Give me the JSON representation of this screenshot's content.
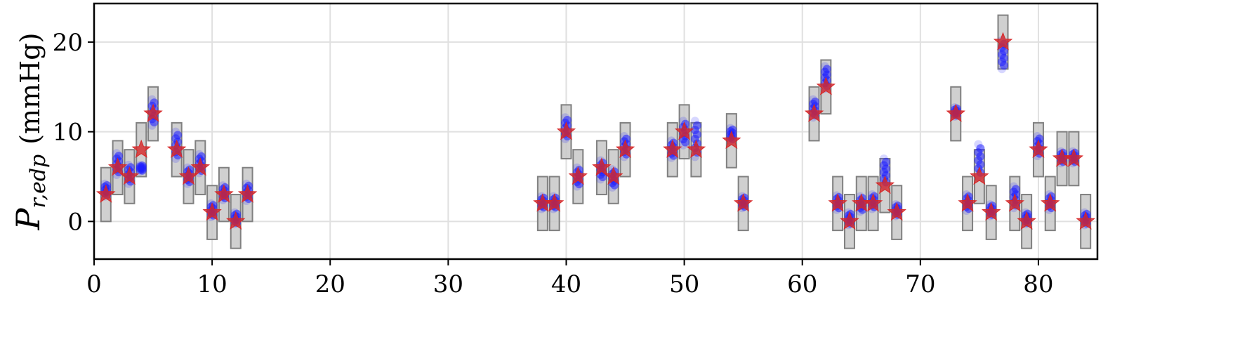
{
  "chart_data": {
    "type": "scatter",
    "title": "",
    "xlabel": "",
    "ylabel": "P_{r,edp} (mmHg)",
    "ylabel_parts": {
      "symbol": "P",
      "subscript": "r,edp",
      "unit": "(mmHg)"
    },
    "xlim": [
      0,
      85
    ],
    "ylim": [
      -4.2,
      24.3
    ],
    "xticks": [
      0,
      10,
      20,
      30,
      40,
      50,
      60,
      70,
      80
    ],
    "yticks": [
      0,
      10,
      20
    ],
    "grid": true,
    "colors": {
      "box": "#808080",
      "box_fill": "#c8c8c8",
      "dots": "#1f1fff",
      "star": "#d62728",
      "grid": "#e0e0e0"
    },
    "series": [
      {
        "marker": "star",
        "x": [
          1,
          2,
          3,
          4,
          5,
          7,
          8,
          9,
          10,
          11,
          12,
          13,
          38,
          39,
          40,
          41,
          43,
          44,
          45,
          49,
          50,
          51,
          54,
          55,
          61,
          62,
          63,
          64,
          65,
          66,
          67,
          68,
          73,
          74,
          75,
          76,
          77,
          78,
          79,
          80,
          81,
          82,
          83,
          84
        ],
        "values": [
          3,
          6,
          5,
          8,
          12,
          8,
          5,
          6,
          1,
          3,
          0,
          3,
          2,
          2,
          10,
          5,
          6,
          5,
          8,
          8,
          10,
          8,
          9,
          2,
          12,
          15,
          2,
          0,
          2,
          2,
          4,
          1,
          12,
          2,
          5,
          1,
          20,
          2,
          0,
          8,
          2,
          7,
          7,
          0
        ]
      },
      {
        "marker": "box",
        "x": [
          1,
          2,
          3,
          4,
          5,
          7,
          8,
          9,
          10,
          11,
          12,
          13,
          38,
          39,
          40,
          41,
          43,
          44,
          45,
          49,
          50,
          51,
          54,
          55,
          61,
          62,
          63,
          64,
          65,
          66,
          67,
          68,
          73,
          74,
          75,
          76,
          77,
          78,
          79,
          80,
          81,
          82,
          83,
          84
        ],
        "values": [
          3,
          6,
          5,
          8,
          12,
          8,
          5,
          6,
          1,
          3,
          0,
          3,
          2,
          2,
          10,
          5,
          6,
          5,
          8,
          8,
          10,
          8,
          9,
          2,
          12,
          15,
          2,
          0,
          2,
          2,
          4,
          1,
          12,
          2,
          5,
          1,
          20,
          2,
          0,
          8,
          2,
          7,
          7,
          0
        ],
        "halfwidth": 3
      },
      {
        "marker": "dots",
        "x": [
          1,
          2,
          3,
          4,
          5,
          7,
          8,
          9,
          10,
          11,
          12,
          13,
          38,
          39,
          40,
          41,
          43,
          44,
          45,
          49,
          50,
          51,
          54,
          55,
          61,
          62,
          63,
          64,
          65,
          66,
          67,
          68,
          73,
          74,
          75,
          76,
          77,
          78,
          79,
          80,
          81,
          82,
          83,
          84
        ],
        "low": [
          2.8,
          5.2,
          4.2,
          5.6,
          10.7,
          7.0,
          4.2,
          5.4,
          0.5,
          2.4,
          -0.3,
          2.3,
          1.4,
          1.4,
          9.2,
          3.9,
          4.7,
          3.8,
          7.2,
          7.1,
          8.5,
          7.2,
          9.0,
          1.5,
          11.6,
          14.8,
          1.3,
          -0.4,
          1.1,
          1.4,
          4.0,
          0.6,
          11.7,
          1.2,
          5.0,
          0.6,
          17.0,
          1.5,
          -0.3,
          7.3,
          1.3,
          6.5,
          6.5,
          -0.4
        ],
        "high": [
          4.2,
          7.6,
          6.3,
          6.3,
          13.6,
          10.0,
          6.0,
          7.5,
          2.0,
          4.0,
          1.0,
          4.2,
          2.8,
          2.8,
          11.6,
          6.0,
          6.8,
          5.8,
          9.5,
          9.0,
          11.2,
          11.2,
          10.4,
          2.8,
          13.6,
          17.3,
          2.9,
          1.0,
          2.8,
          3.0,
          7.0,
          1.9,
          12.7,
          3.0,
          8.6,
          1.9,
          20.2,
          3.9,
          1.0,
          9.5,
          3.0,
          7.8,
          7.8,
          1.0
        ]
      }
    ]
  }
}
